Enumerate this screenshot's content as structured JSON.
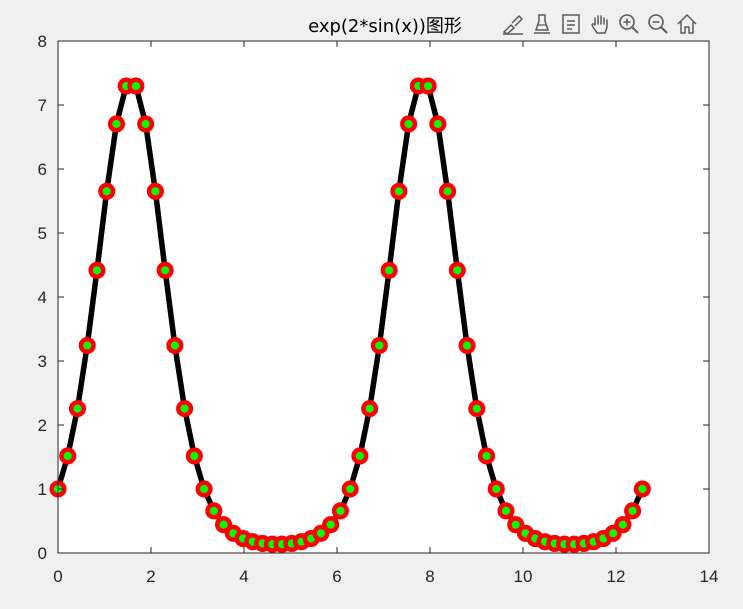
{
  "window": {
    "background": "#f0f0f0"
  },
  "toolbar": {
    "buttons": [
      {
        "name": "brush-icon",
        "label": "Brush / Select Data"
      },
      {
        "name": "data-tip-icon",
        "label": "Data Tips"
      },
      {
        "name": "legend-toggle-icon",
        "label": "Insert Legend"
      },
      {
        "name": "pan-icon",
        "label": "Pan"
      },
      {
        "name": "zoom-in-icon",
        "label": "Zoom In"
      },
      {
        "name": "zoom-out-icon",
        "label": "Zoom Out"
      },
      {
        "name": "home-icon",
        "label": "Restore View"
      }
    ]
  },
  "chart_data": {
    "type": "line",
    "title": "exp(2*sin(x))图形",
    "xlabel": "",
    "ylabel": "",
    "xlim": [
      0,
      14
    ],
    "ylim": [
      0,
      8
    ],
    "x_ticks": [
      0,
      2,
      4,
      6,
      8,
      10,
      12,
      14
    ],
    "y_ticks": [
      0,
      1,
      2,
      3,
      4,
      5,
      6,
      7,
      8
    ],
    "x_tick_labels": [
      "0",
      "2",
      "4",
      "6",
      "8",
      "10",
      "12",
      "14"
    ],
    "y_tick_labels": [
      "0",
      "1",
      "2",
      "3",
      "4",
      "5",
      "6",
      "7",
      "8"
    ],
    "grid": false,
    "series": [
      {
        "function": "exp(2*sin(x))",
        "x_start": 0,
        "x_end": 12.566,
        "point_count": 61,
        "x": [
          0,
          0.2094,
          0.4189,
          0.6283,
          0.8378,
          1.0472,
          1.2566,
          1.4661,
          1.6755,
          1.885,
          2.0944,
          2.3038,
          2.5133,
          2.7227,
          2.9322,
          3.1416,
          3.351,
          3.5605,
          3.7699,
          3.9794,
          4.1888,
          4.3982,
          4.6077,
          4.8171,
          5.0265,
          5.236,
          5.4454,
          5.6549,
          5.8643,
          6.0737,
          6.2832,
          6.4926,
          6.7021,
          6.9115,
          7.121,
          7.3304,
          7.5398,
          7.7493,
          7.9587,
          8.1681,
          8.3776,
          8.587,
          8.7965,
          9.0059,
          9.2153,
          9.4248,
          9.6342,
          9.8437,
          10.0531,
          10.2625,
          10.472,
          10.6814,
          10.8909,
          11.1003,
          11.3097,
          11.5192,
          11.7286,
          11.9381,
          12.1475,
          12.3569,
          12.5664
        ],
        "y": [
          1.0,
          1.516,
          2.256,
          3.242,
          4.417,
          5.652,
          6.704,
          7.297,
          7.297,
          6.704,
          5.652,
          4.417,
          3.242,
          2.256,
          1.516,
          1.0,
          0.659,
          0.443,
          0.308,
          0.226,
          0.177,
          0.149,
          0.137,
          0.137,
          0.149,
          0.177,
          0.226,
          0.308,
          0.443,
          0.659,
          1.0,
          1.516,
          2.256,
          3.242,
          4.417,
          5.652,
          6.704,
          7.297,
          7.297,
          6.704,
          5.652,
          4.417,
          3.242,
          2.256,
          1.516,
          1.0,
          0.659,
          0.443,
          0.308,
          0.226,
          0.177,
          0.149,
          0.137,
          0.137,
          0.149,
          0.177,
          0.226,
          0.308,
          0.443,
          0.659,
          1.0
        ],
        "line_color": "#000000",
        "marker": "circle",
        "marker_edge_color": "#ff0000",
        "marker_face_color": "#00ff00"
      }
    ]
  }
}
